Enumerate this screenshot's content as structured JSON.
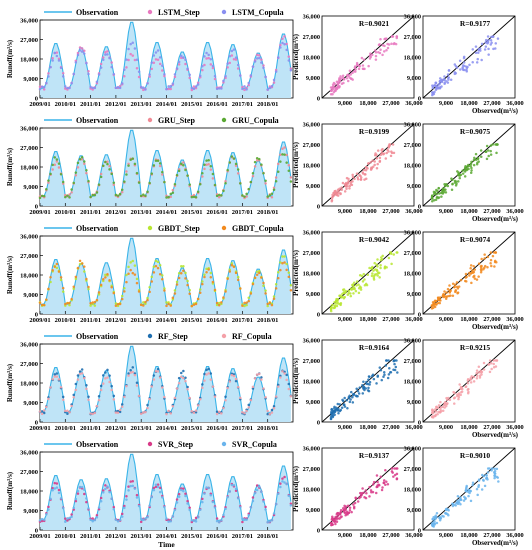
{
  "figure": {
    "time_label": "Time",
    "runoff_ylabel": "Runoff(m³/s)",
    "pred_ylabel": "Predicted(m³/s)",
    "obs_xlabel": "Observed(m³/s)",
    "y_ticks": [
      "0",
      "9,000",
      "18,000",
      "27,000",
      "36,000"
    ],
    "x_year_ticks": [
      "2009/01",
      "2010/01",
      "2011/01",
      "2012/01",
      "2013/01",
      "2014/01",
      "2015/01",
      "2016/01",
      "2017/01",
      "2018/01"
    ],
    "scatter_x_ticks": [
      "0",
      "9,000",
      "18,000",
      "27,000",
      "36,000"
    ]
  },
  "colors": {
    "observation_line": "#3ab4e8",
    "observation_fill": "#bfe4f7",
    "lstm_step": "#e879c0",
    "lstm_copula": "#8a8ff0",
    "gru_step": "#f08a94",
    "gru_copula": "#5aa832",
    "gbdt_step": "#b8e632",
    "gbdt_copula": "#f28a1e",
    "rf_step": "#1f6fb0",
    "rf_copula": "#f4a0a8",
    "svr_step": "#d83a88",
    "svr_copula": "#6ab4ec"
  },
  "chart_data": [
    {
      "type": "line",
      "model": "LSTM",
      "legend": [
        "Observation",
        "LSTM_Step",
        "LSTM_Copula"
      ],
      "xlabel": "",
      "ylabel": "Runoff(m³/s)",
      "ylim": [
        0,
        36000
      ],
      "x_range": [
        "2009/01",
        "2019/01"
      ],
      "observation_peaks_m3s": [
        25500,
        23500,
        24000,
        35500,
        26000,
        21500,
        26000,
        25000,
        21000,
        30000
      ],
      "step_peaks_m3s": [
        21000,
        24000,
        22000,
        20000,
        17500,
        18000,
        18000,
        19000,
        20500,
        28000
      ],
      "copula_peaks_m3s": [
        20500,
        22500,
        20000,
        25500,
        22000,
        19500,
        21000,
        22000,
        19000,
        26000
      ],
      "baseline_m3s": 4500
    },
    {
      "type": "scatter",
      "title": "R=0.9021",
      "series": [
        {
          "name": "LSTM_Step"
        }
      ],
      "xlabel": "Observed(m³/s)",
      "ylabel": "Predicted(m³/s)",
      "xlim": [
        0,
        36000
      ],
      "ylim": [
        0,
        36000
      ],
      "r": 0.9021
    },
    {
      "type": "scatter",
      "title": "R=0.9177",
      "series": [
        {
          "name": "LSTM_Copula"
        }
      ],
      "xlabel": "Observed(m³/s)",
      "ylabel": "",
      "xlim": [
        0,
        36000
      ],
      "ylim": [
        0,
        36000
      ],
      "r": 0.9177
    },
    {
      "type": "line",
      "model": "GRU",
      "legend": [
        "Observation",
        "GRU_Step",
        "GRU_Copula"
      ],
      "xlabel": "",
      "ylabel": "Runoff(m³/s)",
      "ylim": [
        0,
        36000
      ],
      "x_range": [
        "2009/01",
        "2019/01"
      ],
      "observation_peaks_m3s": [
        25500,
        23500,
        24000,
        35500,
        26000,
        21500,
        26000,
        25000,
        21000,
        30000
      ],
      "step_peaks_m3s": [
        20000,
        21000,
        20500,
        22000,
        21500,
        19500,
        19000,
        22000,
        20500,
        27000
      ],
      "copula_peaks_m3s": [
        22000,
        22500,
        20000,
        21500,
        22000,
        19000,
        20500,
        23000,
        22000,
        23500
      ],
      "baseline_m3s": 4500
    },
    {
      "type": "scatter",
      "title": "R=0.9199",
      "series": [
        {
          "name": "GRU_Step"
        }
      ],
      "xlabel": "Observed(m³/s)",
      "ylabel": "Predicted(m³/s)",
      "xlim": [
        0,
        36000
      ],
      "ylim": [
        0,
        36000
      ],
      "r": 0.9199
    },
    {
      "type": "scatter",
      "title": "R=0.9075",
      "series": [
        {
          "name": "GRU_Copula"
        }
      ],
      "xlabel": "Observed(m³/s)",
      "ylabel": "",
      "xlim": [
        0,
        36000
      ],
      "ylim": [
        0,
        36000
      ],
      "r": 0.9075
    },
    {
      "type": "line",
      "model": "GBDT",
      "legend": [
        "Observation",
        "GBDT_Step",
        "GBDT_Copula"
      ],
      "xlabel": "",
      "ylabel": "Runoff(m³/s)",
      "ylim": [
        0,
        36000
      ],
      "x_range": [
        "2009/01",
        "2019/01"
      ],
      "observation_peaks_m3s": [
        25500,
        23500,
        24000,
        35500,
        26000,
        21500,
        26000,
        25000,
        21000,
        30000
      ],
      "step_peaks_m3s": [
        22000,
        23000,
        17500,
        24500,
        25000,
        21500,
        21000,
        23000,
        19500,
        27000
      ],
      "copula_peaks_m3s": [
        23000,
        24000,
        18000,
        20000,
        21500,
        19500,
        20000,
        22500,
        19000,
        24000
      ],
      "baseline_m3s": 4500
    },
    {
      "type": "scatter",
      "title": "R=0.9042",
      "series": [
        {
          "name": "GBDT_Step"
        }
      ],
      "xlabel": "Observed(m³/s)",
      "ylabel": "Predicted(m³/s)",
      "xlim": [
        0,
        36000
      ],
      "ylim": [
        0,
        36000
      ],
      "r": 0.9042
    },
    {
      "type": "scatter",
      "title": "R=0.9074",
      "series": [
        {
          "name": "GBDT_Copula"
        }
      ],
      "xlabel": "Observed(m³/s)",
      "ylabel": "",
      "xlim": [
        0,
        36000
      ],
      "ylim": [
        0,
        36000
      ],
      "r": 0.9074
    },
    {
      "type": "line",
      "model": "RF",
      "legend": [
        "Observation",
        "RF_Step",
        "RF_Copula"
      ],
      "xlabel": "",
      "ylabel": "Runoff(m³/s)",
      "ylim": [
        0,
        36000
      ],
      "x_range": [
        "2009/01",
        "2019/01"
      ],
      "observation_peaks_m3s": [
        25500,
        23500,
        24000,
        35500,
        26000,
        21500,
        26000,
        25000,
        21000,
        30000
      ],
      "step_peaks_m3s": [
        22500,
        24000,
        23500,
        25000,
        24000,
        23000,
        24500,
        22000,
        22500,
        24000
      ],
      "copula_peaks_m3s": [
        22000,
        22000,
        21000,
        24000,
        23000,
        21000,
        22000,
        21500,
        22000,
        23000
      ],
      "baseline_m3s": 4500
    },
    {
      "type": "scatter",
      "title": "R=0.9164",
      "series": [
        {
          "name": "RF_Step"
        }
      ],
      "xlabel": "Observed(m³/s)",
      "ylabel": "Predicted(m³/s)",
      "xlim": [
        0,
        36000
      ],
      "ylim": [
        0,
        36000
      ],
      "r": 0.9164
    },
    {
      "type": "scatter",
      "title": "R=0.9215",
      "series": [
        {
          "name": "RF_Copula"
        }
      ],
      "xlabel": "Observed(m³/s)",
      "ylabel": "",
      "xlim": [
        0,
        36000
      ],
      "ylim": [
        0,
        36000
      ],
      "r": 0.9215
    },
    {
      "type": "line",
      "model": "SVR",
      "legend": [
        "Observation",
        "SVR_Step",
        "SVR_Copula"
      ],
      "xlabel": "Time",
      "ylabel": "Runoff(m³/s)",
      "ylim": [
        0,
        36000
      ],
      "x_range": [
        "2009/01",
        "2019/01"
      ],
      "observation_peaks_m3s": [
        25500,
        23500,
        24000,
        35500,
        26000,
        21500,
        26000,
        25000,
        21000,
        30000
      ],
      "step_peaks_m3s": [
        21000,
        19000,
        20500,
        22000,
        21000,
        18500,
        19500,
        21000,
        20000,
        24000
      ],
      "copula_peaks_m3s": [
        20000,
        20000,
        19500,
        21000,
        20500,
        18000,
        19000,
        20500,
        19500,
        23000
      ],
      "baseline_m3s": 4500
    },
    {
      "type": "scatter",
      "title": "R=0.9137",
      "series": [
        {
          "name": "SVR_Step"
        }
      ],
      "xlabel": "Observed(m³/s)",
      "ylabel": "Predicted(m³/s)",
      "xlim": [
        0,
        36000
      ],
      "ylim": [
        0,
        36000
      ],
      "r": 0.9137
    },
    {
      "type": "scatter",
      "title": "R=0.9010",
      "series": [
        {
          "name": "SVR_Copula"
        }
      ],
      "xlabel": "Observed(m³/s)",
      "ylabel": "",
      "xlim": [
        0,
        36000
      ],
      "ylim": [
        0,
        36000
      ],
      "r": 0.901
    }
  ]
}
